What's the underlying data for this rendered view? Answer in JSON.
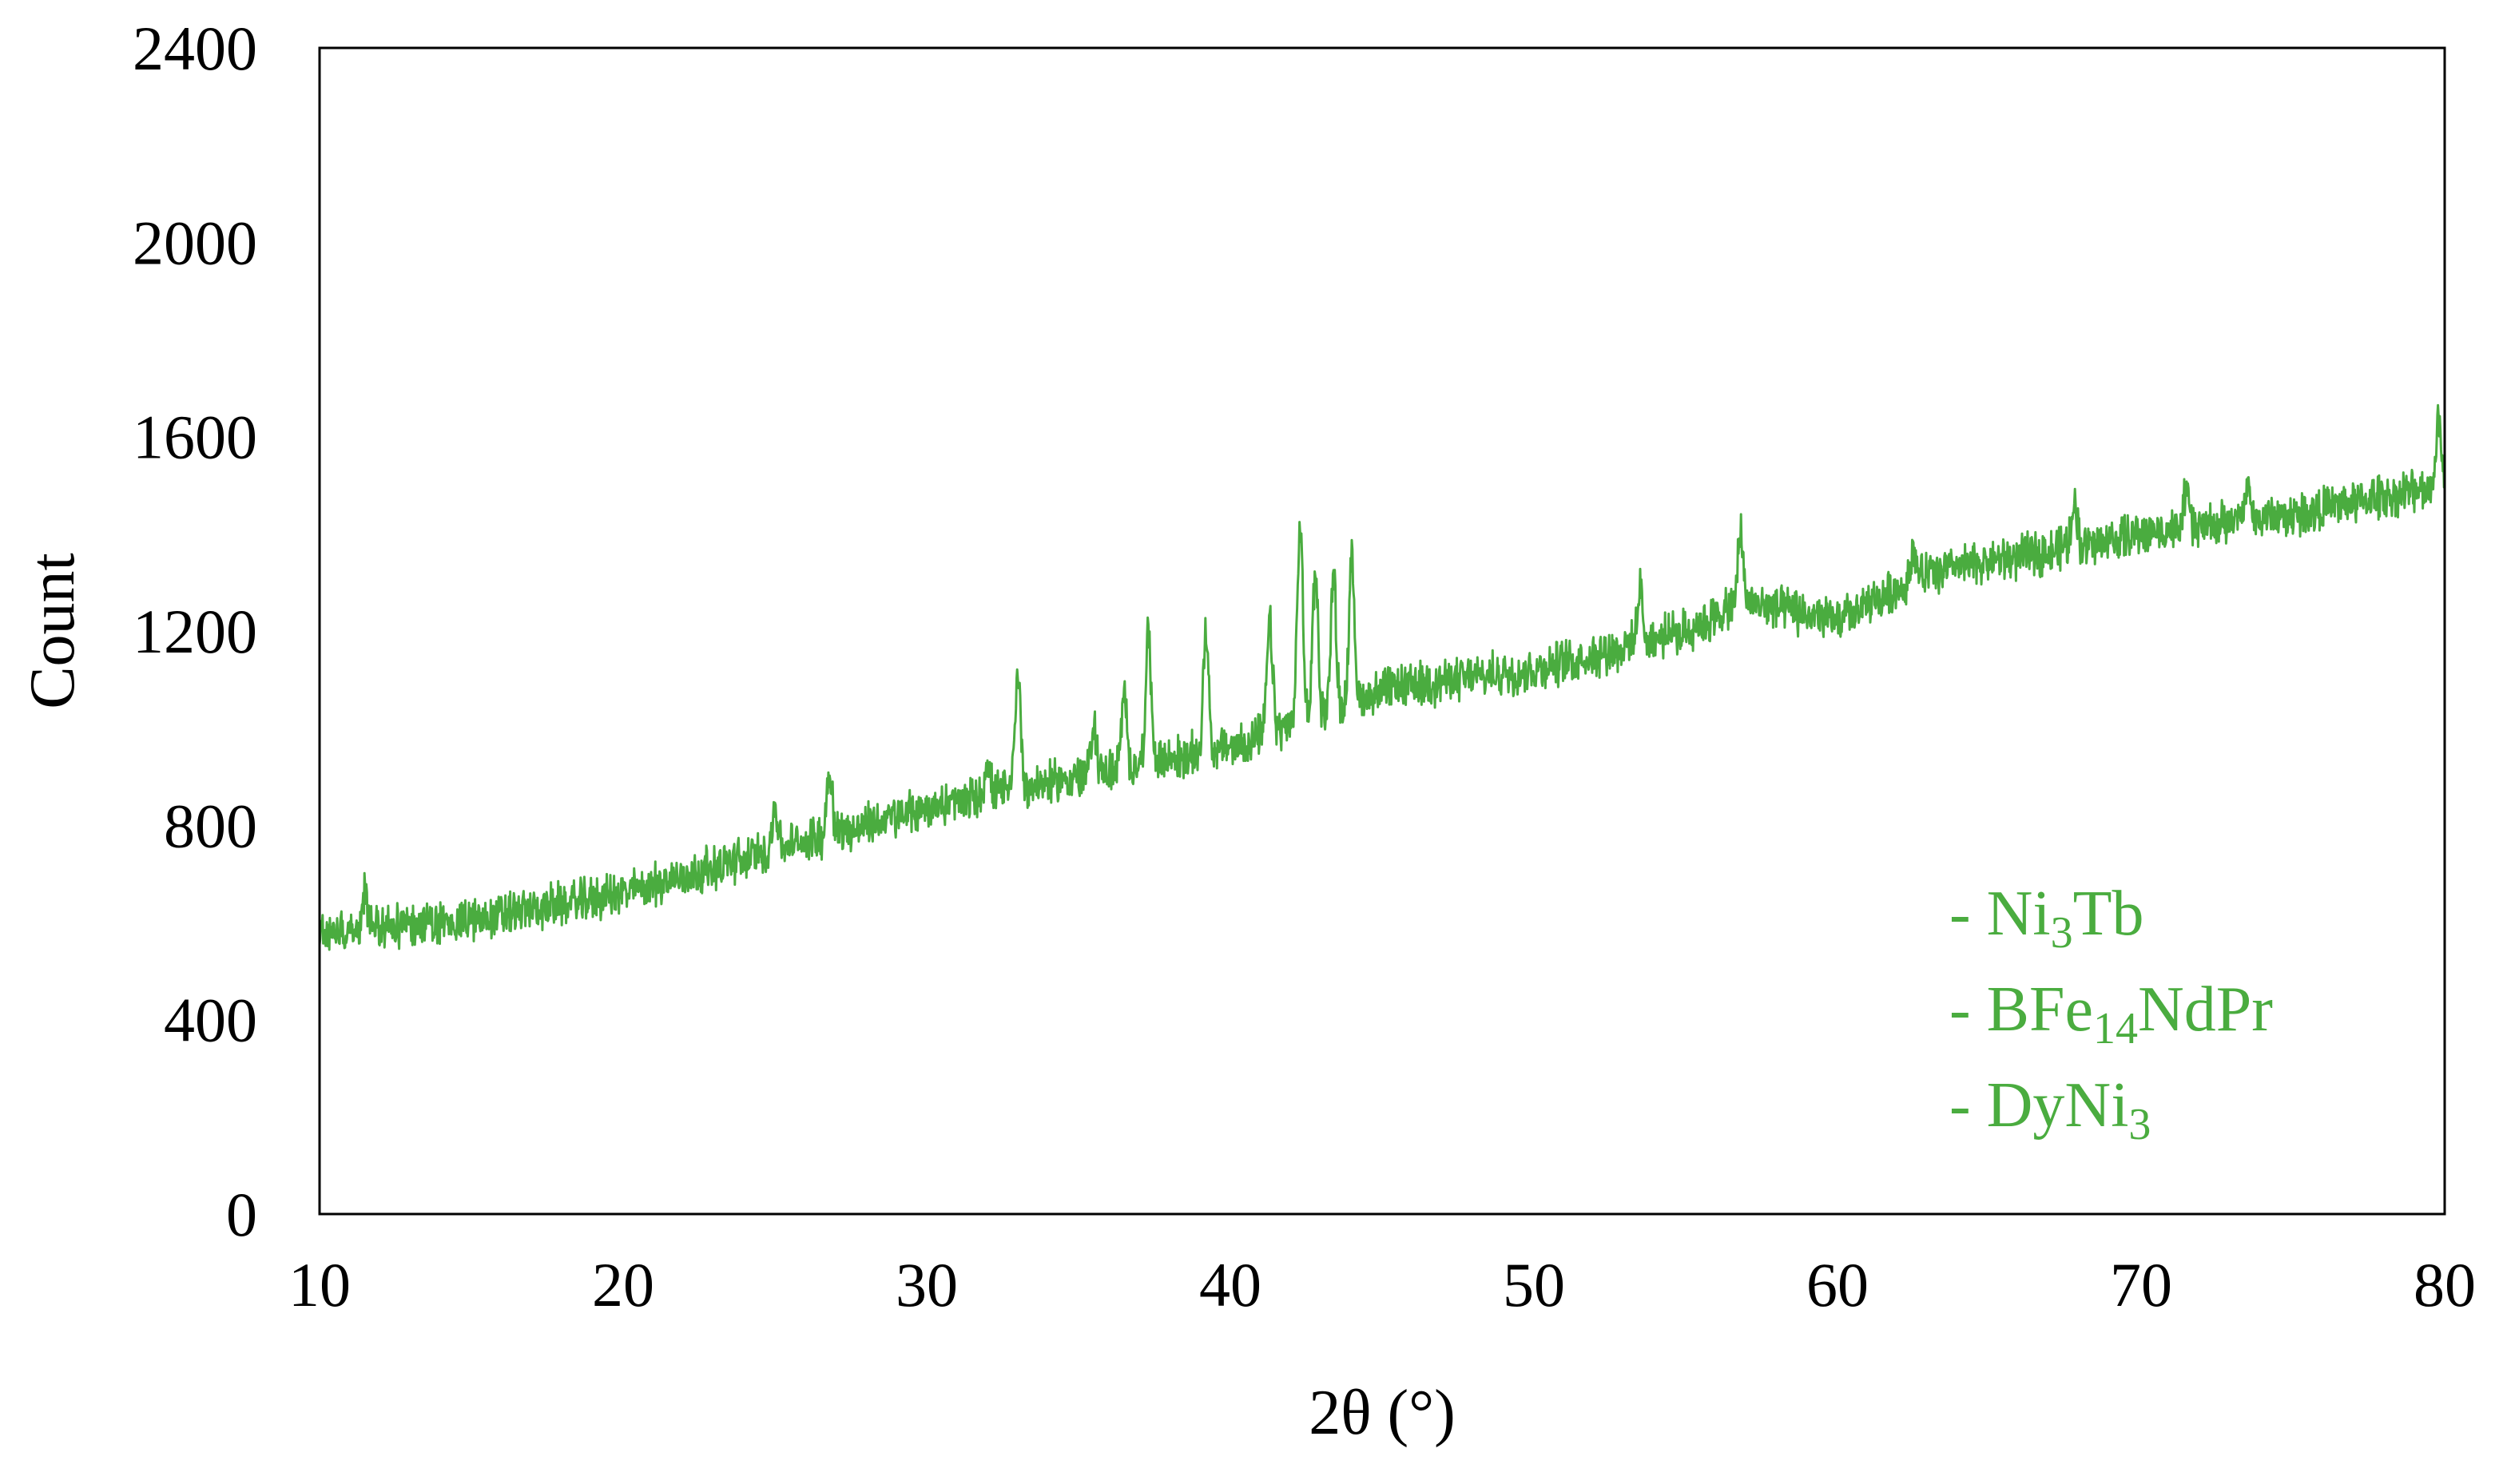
{
  "chart_data": {
    "type": "line",
    "title": "",
    "xlabel": "2θ (°)",
    "ylabel": "Count",
    "xlim": [
      10,
      80
    ],
    "ylim": [
      0,
      2400
    ],
    "x_ticks": [
      "10",
      "20",
      "30",
      "40",
      "50",
      "60",
      "70",
      "80"
    ],
    "y_ticks": [
      "0",
      "400",
      "800",
      "1200",
      "1600",
      "2000",
      "2400"
    ],
    "grid": false,
    "legend_position": "bottom-right",
    "series_color": "#4aac3f",
    "legend": [
      {
        "prefix": "- ",
        "parts": [
          {
            "t": "Ni"
          },
          {
            "t": "3",
            "sub": true
          },
          {
            "t": "Tb"
          }
        ]
      },
      {
        "prefix": "- ",
        "parts": [
          {
            "t": "BFe"
          },
          {
            "t": "14",
            "sub": true
          },
          {
            "t": "NdPr"
          }
        ]
      },
      {
        "prefix": "- ",
        "parts": [
          {
            "t": "DyNi"
          },
          {
            "t": "3",
            "sub": true
          }
        ]
      }
    ],
    "series": [
      {
        "baseline_points": [
          [
            10,
            580
          ],
          [
            15,
            605
          ],
          [
            20,
            660
          ],
          [
            25,
            750
          ],
          [
            30,
            835
          ],
          [
            35,
            900
          ],
          [
            40,
            960
          ],
          [
            44,
            1050
          ],
          [
            45,
            1080
          ],
          [
            50,
            1120
          ],
          [
            55,
            1200
          ],
          [
            57,
            1260
          ],
          [
            60,
            1220
          ],
          [
            63,
            1320
          ],
          [
            70,
            1400
          ],
          [
            75,
            1440
          ],
          [
            80,
            1500
          ]
        ],
        "noise_amplitude": 35,
        "peaks": [
          {
            "x": 11.5,
            "y": 660
          },
          {
            "x": 25.0,
            "y": 840
          },
          {
            "x": 26.8,
            "y": 920
          },
          {
            "x": 32.0,
            "y": 930
          },
          {
            "x": 33.0,
            "y": 1120
          },
          {
            "x": 35.5,
            "y": 1010
          },
          {
            "x": 36.5,
            "y": 1060
          },
          {
            "x": 37.3,
            "y": 1190
          },
          {
            "x": 39.2,
            "y": 1200
          },
          {
            "x": 41.3,
            "y": 1220
          },
          {
            "x": 42.3,
            "y": 1420
          },
          {
            "x": 42.8,
            "y": 1320
          },
          {
            "x": 43.4,
            "y": 1310
          },
          {
            "x": 44.0,
            "y": 1340
          },
          {
            "x": 53.5,
            "y": 1280
          },
          {
            "x": 56.8,
            "y": 1400
          },
          {
            "x": 62.5,
            "y": 1370
          },
          {
            "x": 67.8,
            "y": 1470
          },
          {
            "x": 71.5,
            "y": 1490
          },
          {
            "x": 73.5,
            "y": 1500
          },
          {
            "x": 79.8,
            "y": 1640
          }
        ]
      }
    ]
  }
}
